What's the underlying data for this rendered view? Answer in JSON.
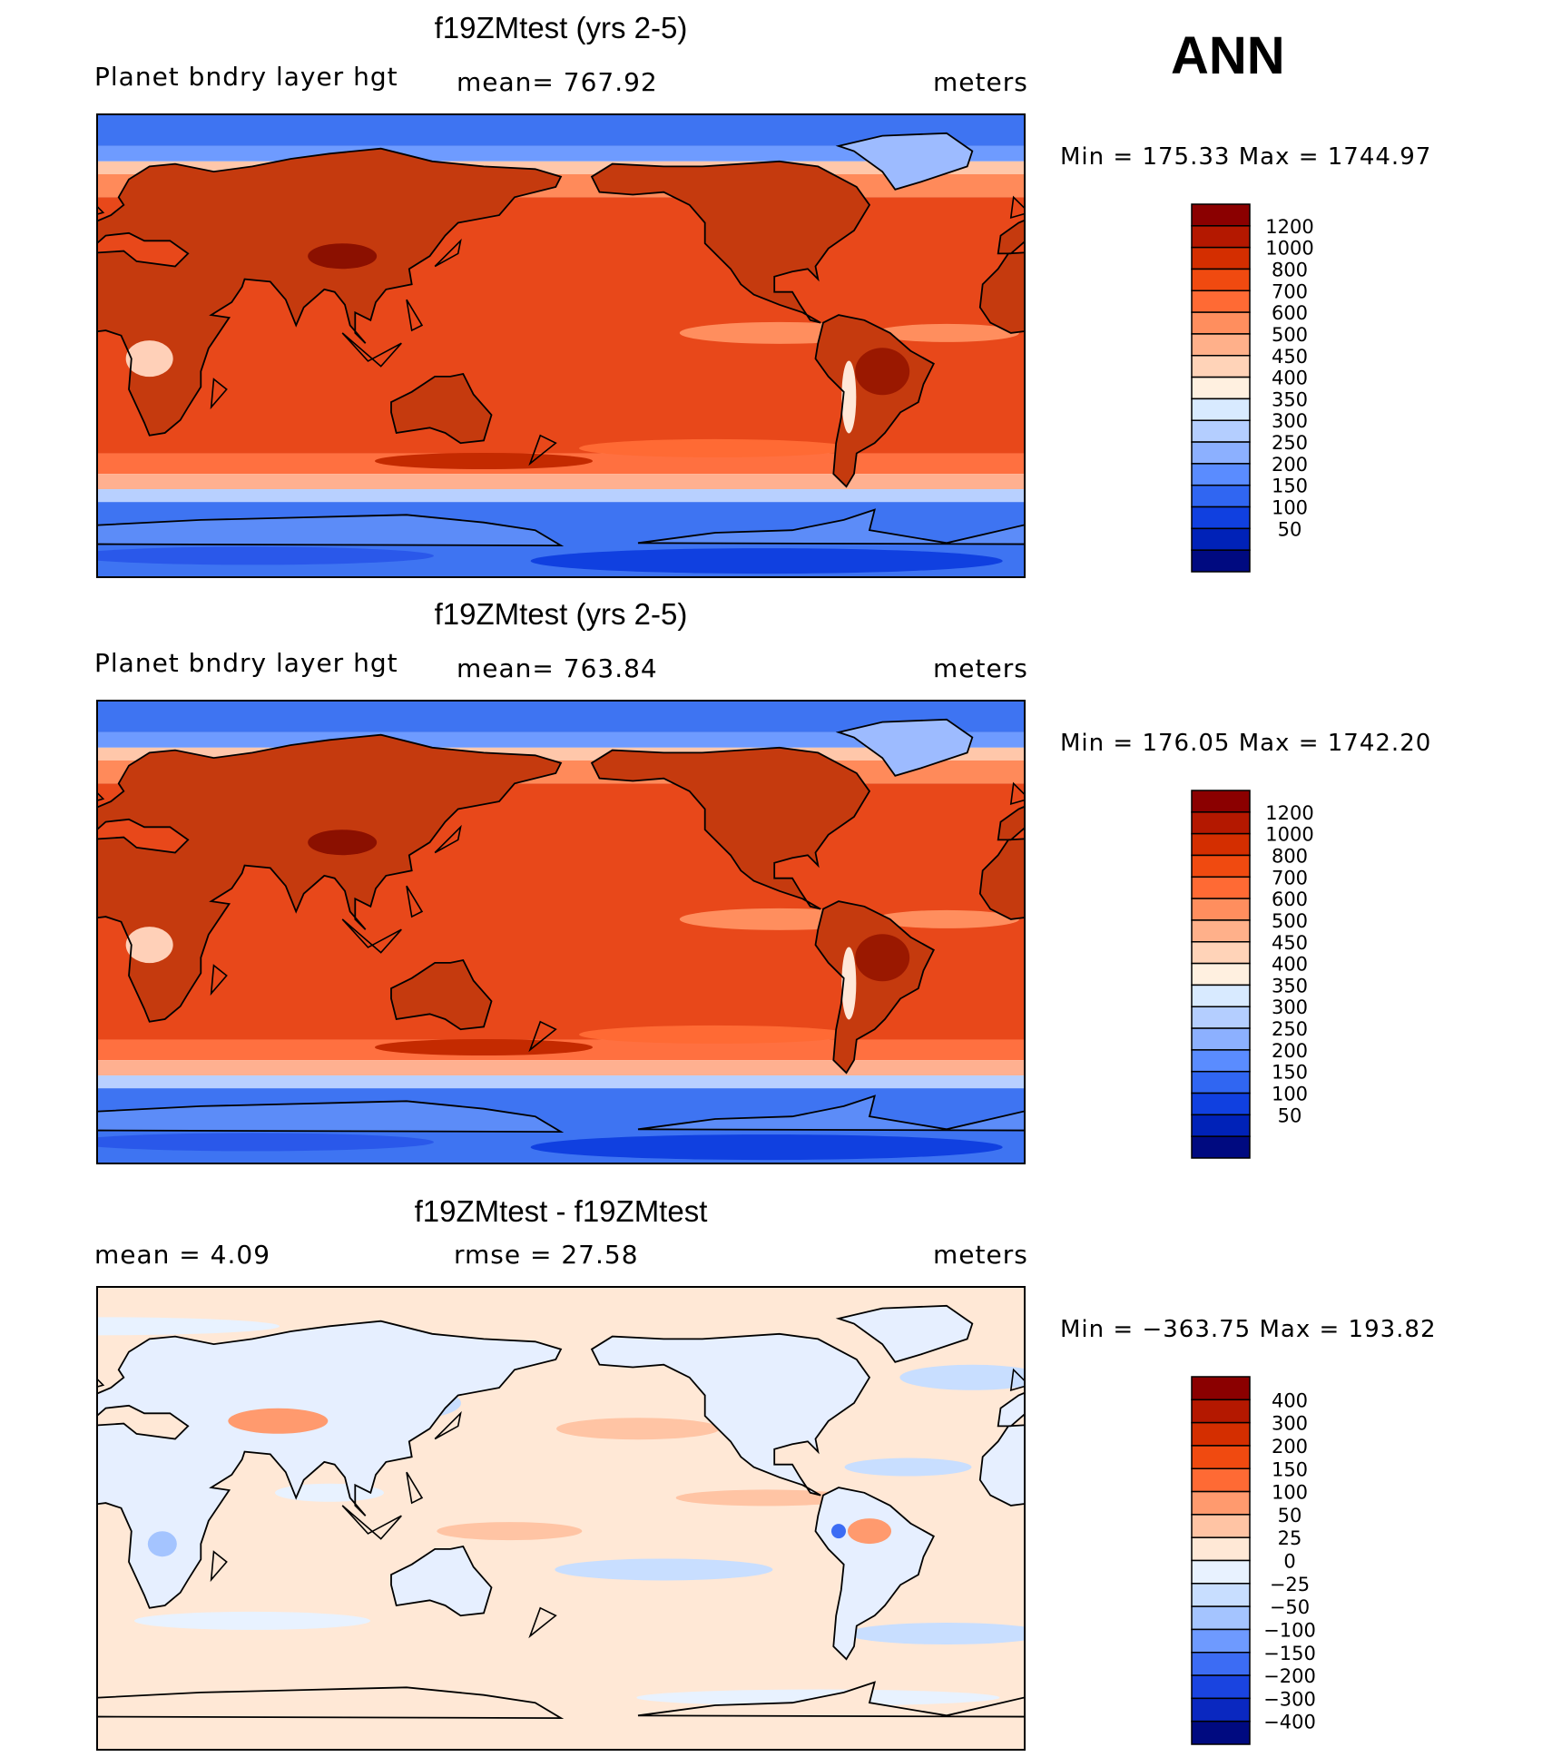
{
  "season": "ANN",
  "chart_data": [
    {
      "type": "heatmap",
      "title": "f19ZMtest (yrs 2-5)",
      "left_label": "Planet bndry layer hgt",
      "center_label": "mean= 767.92",
      "units": "meters",
      "min_max": "Min  =  175.33  Max  =  1744.97",
      "color_levels": [
        "1200",
        "1000",
        "800",
        "700",
        "600",
        "500",
        "450",
        "400",
        "350",
        "300",
        "250",
        "200",
        "150",
        "100",
        "50"
      ],
      "colors": [
        "#8b0000",
        "#b41800",
        "#d42e00",
        "#f04a10",
        "#ff6a34",
        "#ff8e5e",
        "#ffb08a",
        "#ffd3b8",
        "#fff0e0",
        "#d8eaff",
        "#b4ceff",
        "#8cb0ff",
        "#5a8cff",
        "#3066f2",
        "#1040e0",
        "#0022b8",
        "#000a80"
      ]
    },
    {
      "type": "heatmap",
      "title": "f19ZMtest (yrs 2-5)",
      "left_label": "Planet bndry layer hgt",
      "center_label": "mean= 763.84",
      "units": "meters",
      "min_max": "Min  =  176.05  Max  =  1742.20",
      "color_levels": [
        "1200",
        "1000",
        "800",
        "700",
        "600",
        "500",
        "450",
        "400",
        "350",
        "300",
        "250",
        "200",
        "150",
        "100",
        "50"
      ],
      "colors": [
        "#8b0000",
        "#b41800",
        "#d42e00",
        "#f04a10",
        "#ff6a34",
        "#ff8e5e",
        "#ffb08a",
        "#ffd3b8",
        "#fff0e0",
        "#d8eaff",
        "#b4ceff",
        "#8cb0ff",
        "#5a8cff",
        "#3066f2",
        "#1040e0",
        "#0022b8",
        "#000a80"
      ]
    },
    {
      "type": "heatmap",
      "title": "f19ZMtest - f19ZMtest",
      "left_label": "mean =     4.09",
      "center_label": "rmse =    27.58",
      "units": "meters",
      "min_max": "Min  =  −363.75  Max  =  193.82",
      "color_levels": [
        "400",
        "300",
        "200",
        "150",
        "100",
        "50",
        "25",
        "0",
        "−25",
        "−50",
        "−100",
        "−150",
        "−200",
        "−300",
        "−400"
      ],
      "colors": [
        "#8b0000",
        "#b41800",
        "#d42e00",
        "#f04a10",
        "#ff6a34",
        "#ff9a6e",
        "#ffc4a4",
        "#ffe8d6",
        "#e8f2ff",
        "#c8deff",
        "#a4c4ff",
        "#6e9aff",
        "#3c6cf4",
        "#1a44e0",
        "#0a28c0",
        "#000a80"
      ]
    }
  ]
}
